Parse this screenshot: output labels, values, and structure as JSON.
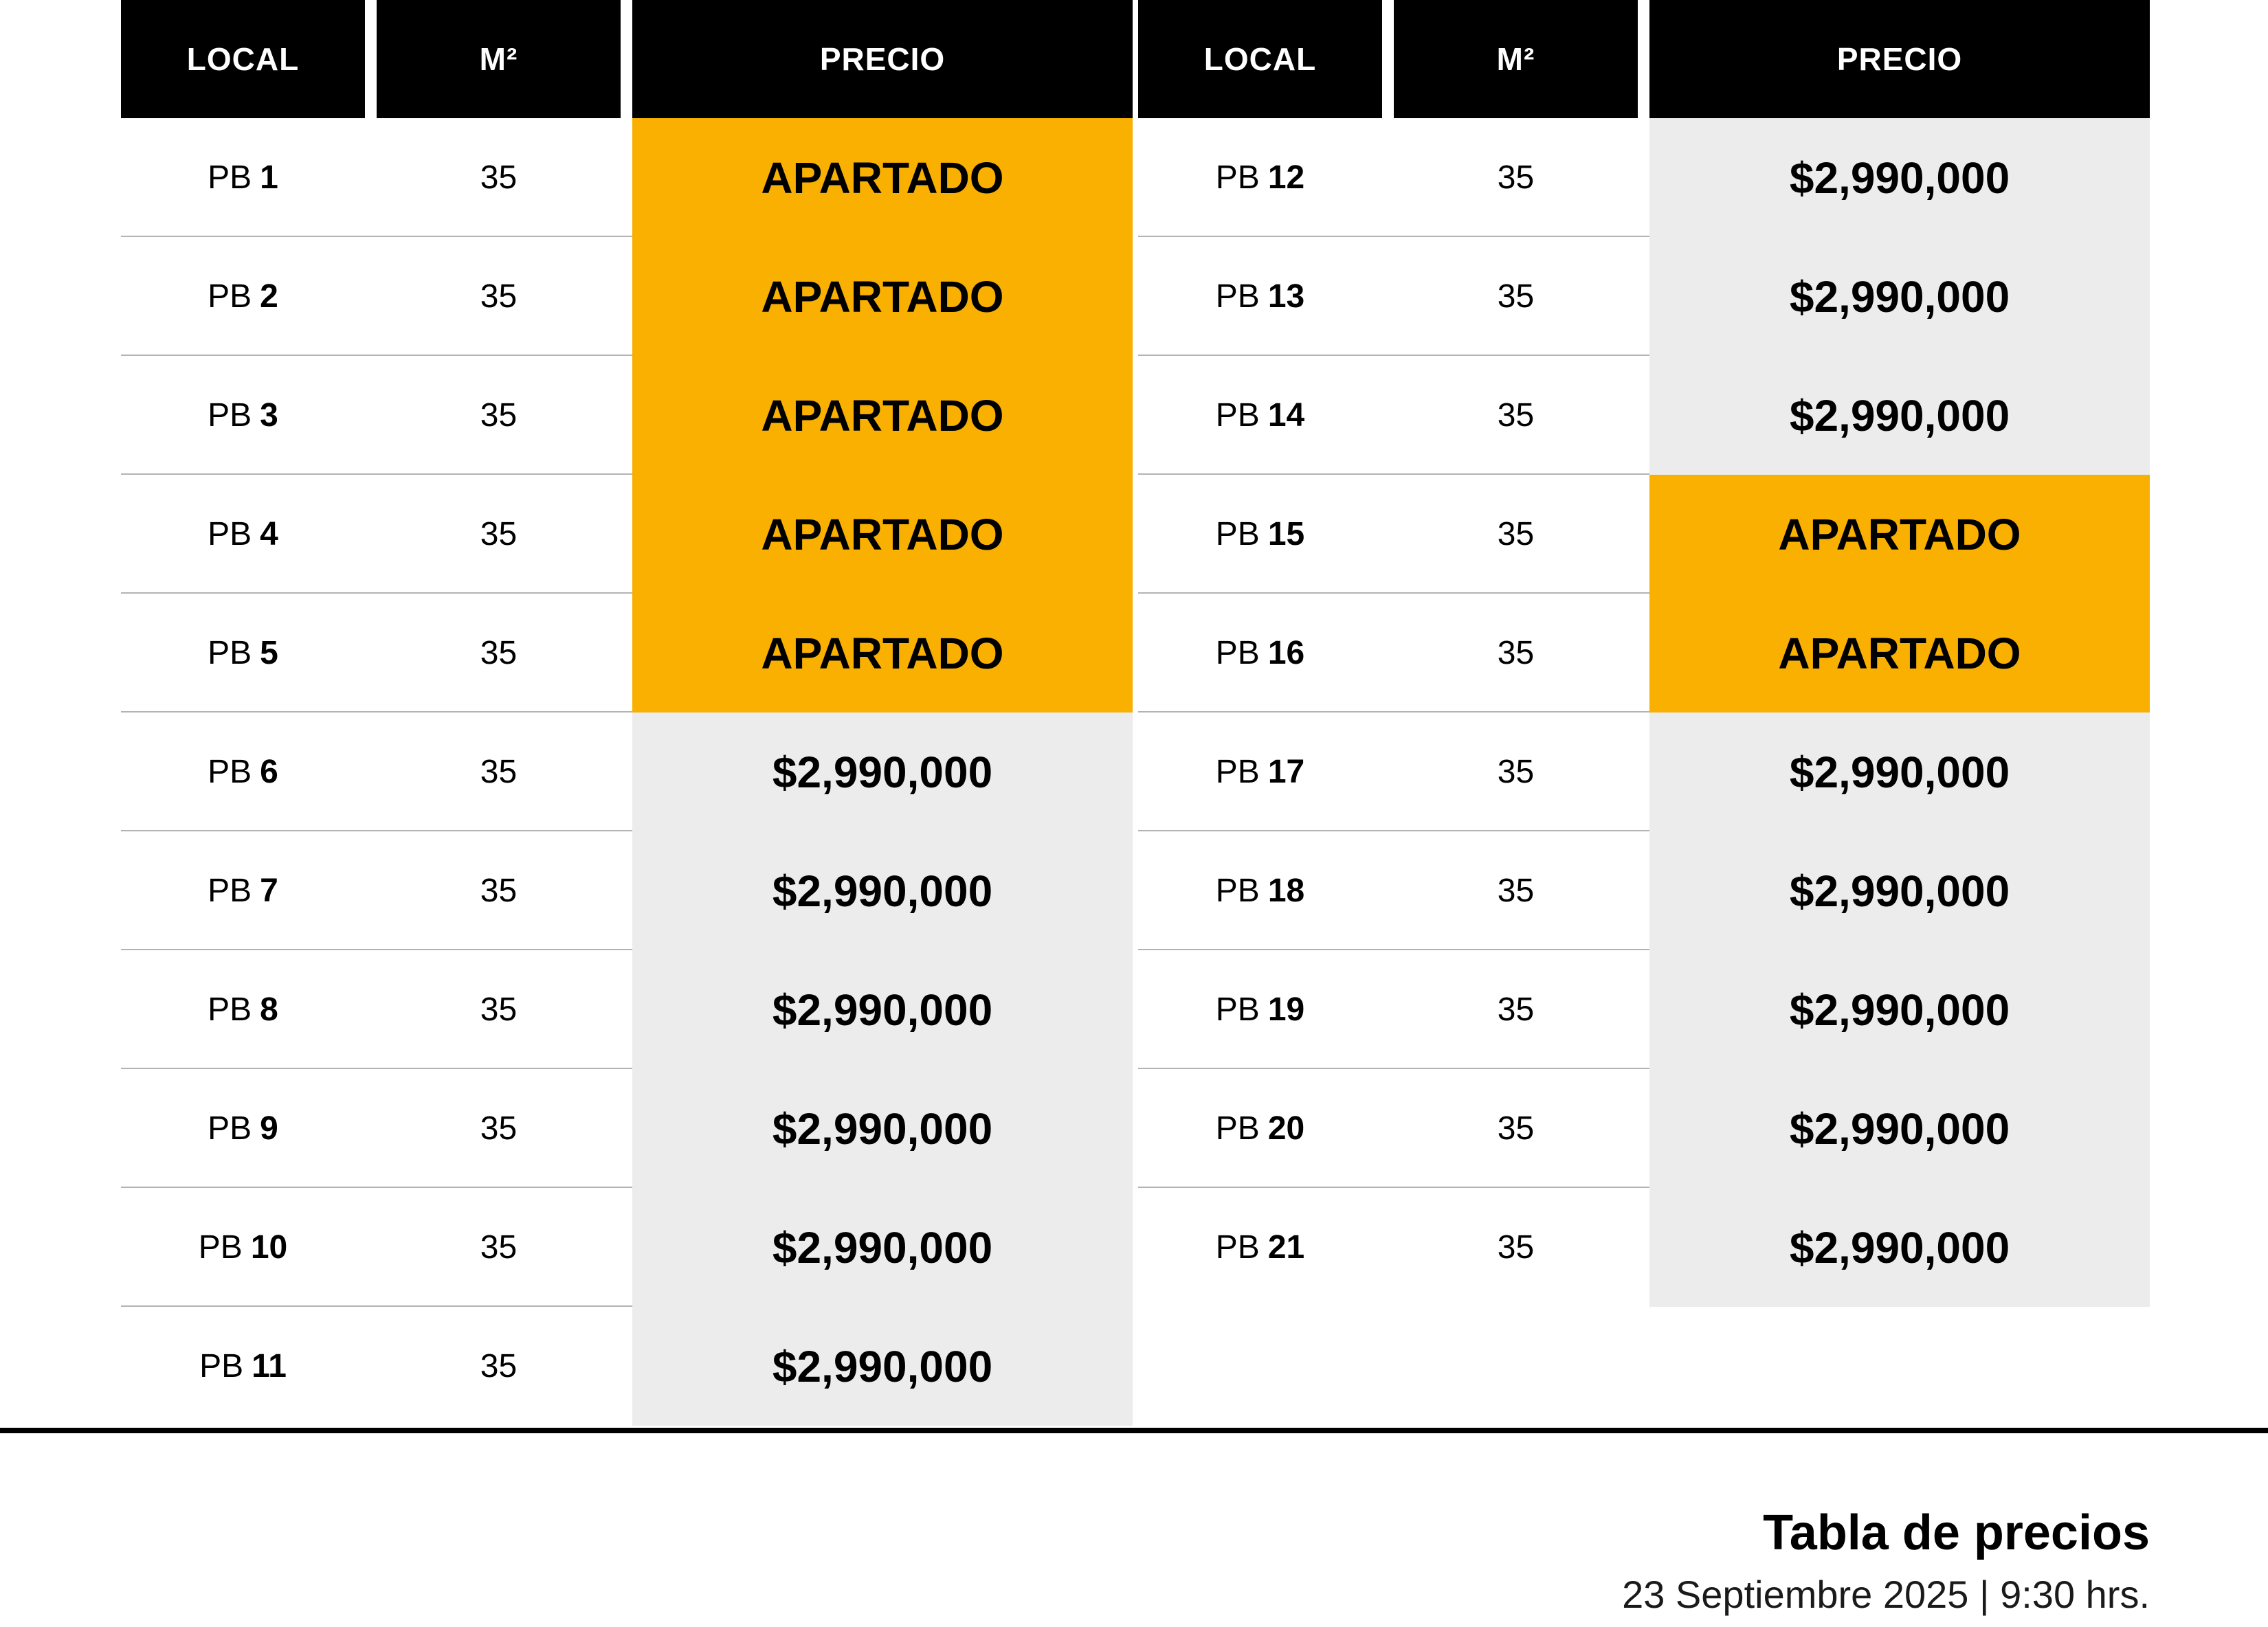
{
  "headers": {
    "local": "LOCAL",
    "m2": "M²",
    "precio": "PRECIO"
  },
  "left_rows": [
    {
      "prefix": "PB",
      "num": "1",
      "m2": "35",
      "precio": "APARTADO",
      "status": "apartado"
    },
    {
      "prefix": "PB",
      "num": "2",
      "m2": "35",
      "precio": "APARTADO",
      "status": "apartado"
    },
    {
      "prefix": "PB",
      "num": "3",
      "m2": "35",
      "precio": "APARTADO",
      "status": "apartado"
    },
    {
      "prefix": "PB",
      "num": "4",
      "m2": "35",
      "precio": "APARTADO",
      "status": "apartado"
    },
    {
      "prefix": "PB",
      "num": "5",
      "m2": "35",
      "precio": "APARTADO",
      "status": "apartado"
    },
    {
      "prefix": "PB",
      "num": "6",
      "m2": "35",
      "precio": "$2,990,000",
      "status": "disponible"
    },
    {
      "prefix": "PB",
      "num": "7",
      "m2": "35",
      "precio": "$2,990,000",
      "status": "disponible"
    },
    {
      "prefix": "PB",
      "num": "8",
      "m2": "35",
      "precio": "$2,990,000",
      "status": "disponible"
    },
    {
      "prefix": "PB",
      "num": "9",
      "m2": "35",
      "precio": "$2,990,000",
      "status": "disponible"
    },
    {
      "prefix": "PB",
      "num": "10",
      "m2": "35",
      "precio": "$2,990,000",
      "status": "disponible"
    },
    {
      "prefix": "PB",
      "num": "11",
      "m2": "35",
      "precio": "$2,990,000",
      "status": "disponible"
    }
  ],
  "right_rows": [
    {
      "prefix": "PB",
      "num": "12",
      "m2": "35",
      "precio": "$2,990,000",
      "status": "disponible"
    },
    {
      "prefix": "PB",
      "num": "13",
      "m2": "35",
      "precio": "$2,990,000",
      "status": "disponible"
    },
    {
      "prefix": "PB",
      "num": "14",
      "m2": "35",
      "precio": "$2,990,000",
      "status": "disponible"
    },
    {
      "prefix": "PB",
      "num": "15",
      "m2": "35",
      "precio": "APARTADO",
      "status": "apartado"
    },
    {
      "prefix": "PB",
      "num": "16",
      "m2": "35",
      "precio": "APARTADO",
      "status": "apartado"
    },
    {
      "prefix": "PB",
      "num": "17",
      "m2": "35",
      "precio": "$2,990,000",
      "status": "disponible"
    },
    {
      "prefix": "PB",
      "num": "18",
      "m2": "35",
      "precio": "$2,990,000",
      "status": "disponible"
    },
    {
      "prefix": "PB",
      "num": "19",
      "m2": "35",
      "precio": "$2,990,000",
      "status": "disponible"
    },
    {
      "prefix": "PB",
      "num": "20",
      "m2": "35",
      "precio": "$2,990,000",
      "status": "disponible"
    },
    {
      "prefix": "PB",
      "num": "21",
      "m2": "35",
      "precio": "$2,990,000",
      "status": "disponible"
    }
  ],
  "colors": {
    "apartado": "#f9b000",
    "price_bg": "#ececec",
    "header_bg": "#000000"
  },
  "footer": {
    "title": "Tabla de precios",
    "subtitle": "23 Septiembre 2025 | 9:30 hrs."
  }
}
